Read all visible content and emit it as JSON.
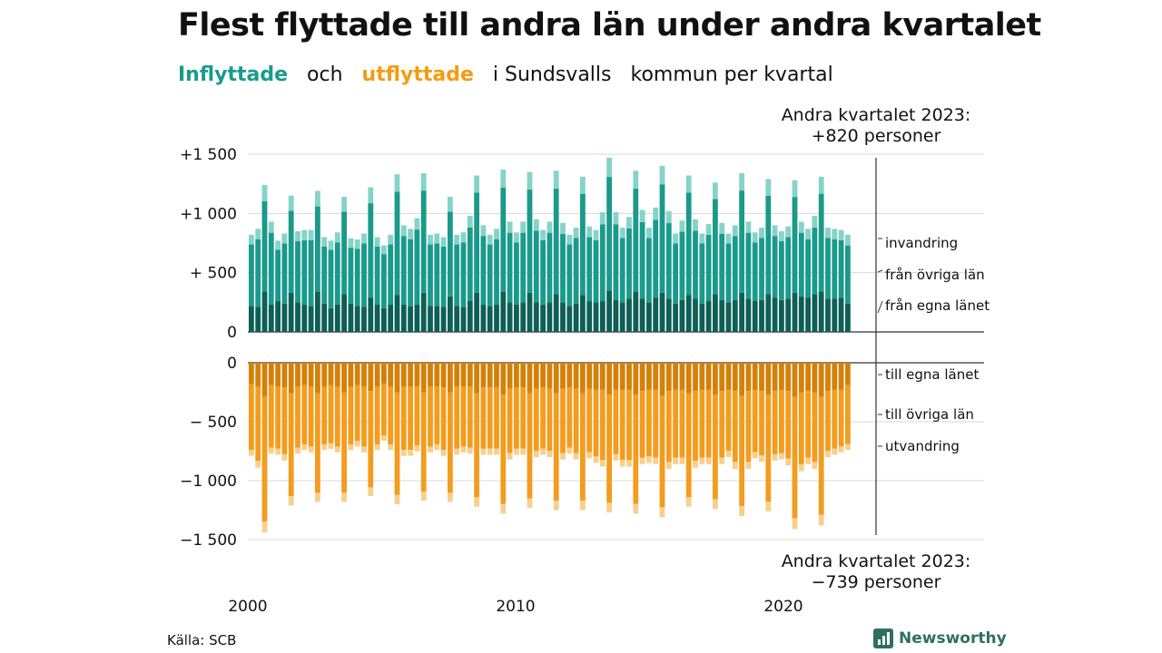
{
  "title": "Flest flyttade till andra län under andra kvartalet",
  "subtitle": {
    "part1": "Inflyttade",
    "part2": "och",
    "part3": "utflyttade",
    "part4": "i Sundsvalls",
    "part5": "kommun per kvartal"
  },
  "annotation_top": {
    "line1": "Andra kvartalet 2023:",
    "line2": "+820 personer"
  },
  "annotation_bottom": {
    "line1": "Andra kvartalet 2023:",
    "line2": "−739 personer"
  },
  "source": "Källa: SCB",
  "brand": "Newsworthy",
  "colors": {
    "in_own": "#0e5f55",
    "in_other": "#1a9a8b",
    "in_immigration": "#86d3c8",
    "out_own": "#d4810a",
    "out_other": "#f39c1e",
    "out_emigration": "#f8cf8c"
  },
  "chart_data": {
    "type": "bar",
    "stacked": true,
    "x_tick_labels": [
      "2000",
      "2010",
      "2020"
    ],
    "x_range": [
      "2000 Q1",
      "2023 Q2"
    ],
    "panels": [
      {
        "name": "Inflyttade",
        "y_range": [
          0,
          1500
        ],
        "y_ticks": [
          "0",
          "+ 500",
          "+1 000",
          "+1 500"
        ],
        "series_labels": [
          "från egna länet",
          "från övriga län",
          "invandring"
        ]
      },
      {
        "name": "Utflyttade",
        "y_range": [
          -1500,
          0
        ],
        "y_ticks": [
          "0",
          "− 500",
          "−1 000",
          "−1 500"
        ],
        "series_labels": [
          "till egna länet",
          "till övriga län",
          "utvandring"
        ]
      }
    ],
    "last_quarter": {
      "label": "2023 Q2",
      "inflow_total": 820,
      "outflow_total": -739
    },
    "inflow_totals": [
      820,
      870,
      1240,
      930,
      770,
      830,
      1150,
      850,
      860,
      860,
      1190,
      800,
      770,
      840,
      1140,
      790,
      780,
      830,
      1220,
      800,
      730,
      820,
      1330,
      900,
      870,
      960,
      1340,
      820,
      830,
      800,
      1140,
      820,
      840,
      980,
      1320,
      900,
      820,
      870,
      1370,
      930,
      840,
      930,
      1350,
      950,
      860,
      930,
      1360,
      920,
      820,
      880,
      1310,
      890,
      860,
      1010,
      1470,
      1010,
      880,
      970,
      1360,
      1030,
      880,
      1050,
      1400,
      1020,
      830,
      940,
      1320,
      950,
      830,
      910,
      1260,
      920,
      830,
      900,
      1340,
      930,
      840,
      880,
      1290,
      900,
      850,
      890,
      1280,
      930,
      870,
      980,
      1310,
      880,
      870,
      860,
      820
    ],
    "outflow_totals": [
      -790,
      -890,
      -1440,
      -770,
      -780,
      -830,
      -1210,
      -770,
      -740,
      -760,
      -1180,
      -740,
      -730,
      -760,
      -1180,
      -740,
      -710,
      -760,
      -1130,
      -740,
      -660,
      -740,
      -1200,
      -790,
      -790,
      -750,
      -1170,
      -760,
      -740,
      -790,
      -1180,
      -780,
      -760,
      -770,
      -1220,
      -780,
      -780,
      -780,
      -1280,
      -820,
      -780,
      -780,
      -1230,
      -800,
      -780,
      -800,
      -1250,
      -820,
      -770,
      -820,
      -1250,
      -810,
      -850,
      -880,
      -1270,
      -830,
      -880,
      -880,
      -1280,
      -860,
      -850,
      -860,
      -1310,
      -900,
      -860,
      -860,
      -1220,
      -890,
      -860,
      -860,
      -1240,
      -860,
      -800,
      -900,
      -1300,
      -900,
      -810,
      -840,
      -1260,
      -830,
      -820,
      -870,
      -1410,
      -920,
      -860,
      -900,
      -1380,
      -800,
      -780,
      -760,
      -739
    ],
    "inflow_own_county": [
      220,
      210,
      340,
      230,
      260,
      240,
      330,
      250,
      230,
      220,
      340,
      240,
      200,
      230,
      320,
      240,
      220,
      210,
      290,
      230,
      200,
      230,
      310,
      230,
      220,
      230,
      330,
      220,
      220,
      210,
      300,
      220,
      210,
      260,
      330,
      230,
      220,
      230,
      340,
      250,
      230,
      250,
      330,
      250,
      230,
      250,
      320,
      250,
      220,
      240,
      310,
      260,
      250,
      260,
      350,
      270,
      250,
      280,
      340,
      280,
      250,
      290,
      330,
      280,
      240,
      270,
      310,
      280,
      240,
      260,
      320,
      270,
      250,
      270,
      330,
      280,
      260,
      270,
      320,
      290,
      270,
      280,
      330,
      300,
      290,
      320,
      340,
      280,
      280,
      290,
      240
    ],
    "outflow_own_county": [
      -180,
      -200,
      -290,
      -190,
      -200,
      -210,
      -260,
      -200,
      -190,
      -200,
      -260,
      -200,
      -190,
      -200,
      -250,
      -200,
      -190,
      -200,
      -240,
      -200,
      -180,
      -200,
      -250,
      -200,
      -200,
      -200,
      -250,
      -200,
      -200,
      -210,
      -250,
      -200,
      -200,
      -200,
      -260,
      -210,
      -210,
      -210,
      -270,
      -220,
      -210,
      -210,
      -260,
      -220,
      -210,
      -220,
      -260,
      -220,
      -210,
      -220,
      -260,
      -220,
      -230,
      -230,
      -270,
      -230,
      -230,
      -230,
      -270,
      -240,
      -230,
      -230,
      -280,
      -240,
      -230,
      -230,
      -260,
      -240,
      -230,
      -230,
      -270,
      -240,
      -230,
      -240,
      -280,
      -240,
      -230,
      -240,
      -270,
      -240,
      -230,
      -240,
      -290,
      -250,
      -240,
      -250,
      -290,
      -240,
      -230,
      -230,
      -190
    ]
  }
}
